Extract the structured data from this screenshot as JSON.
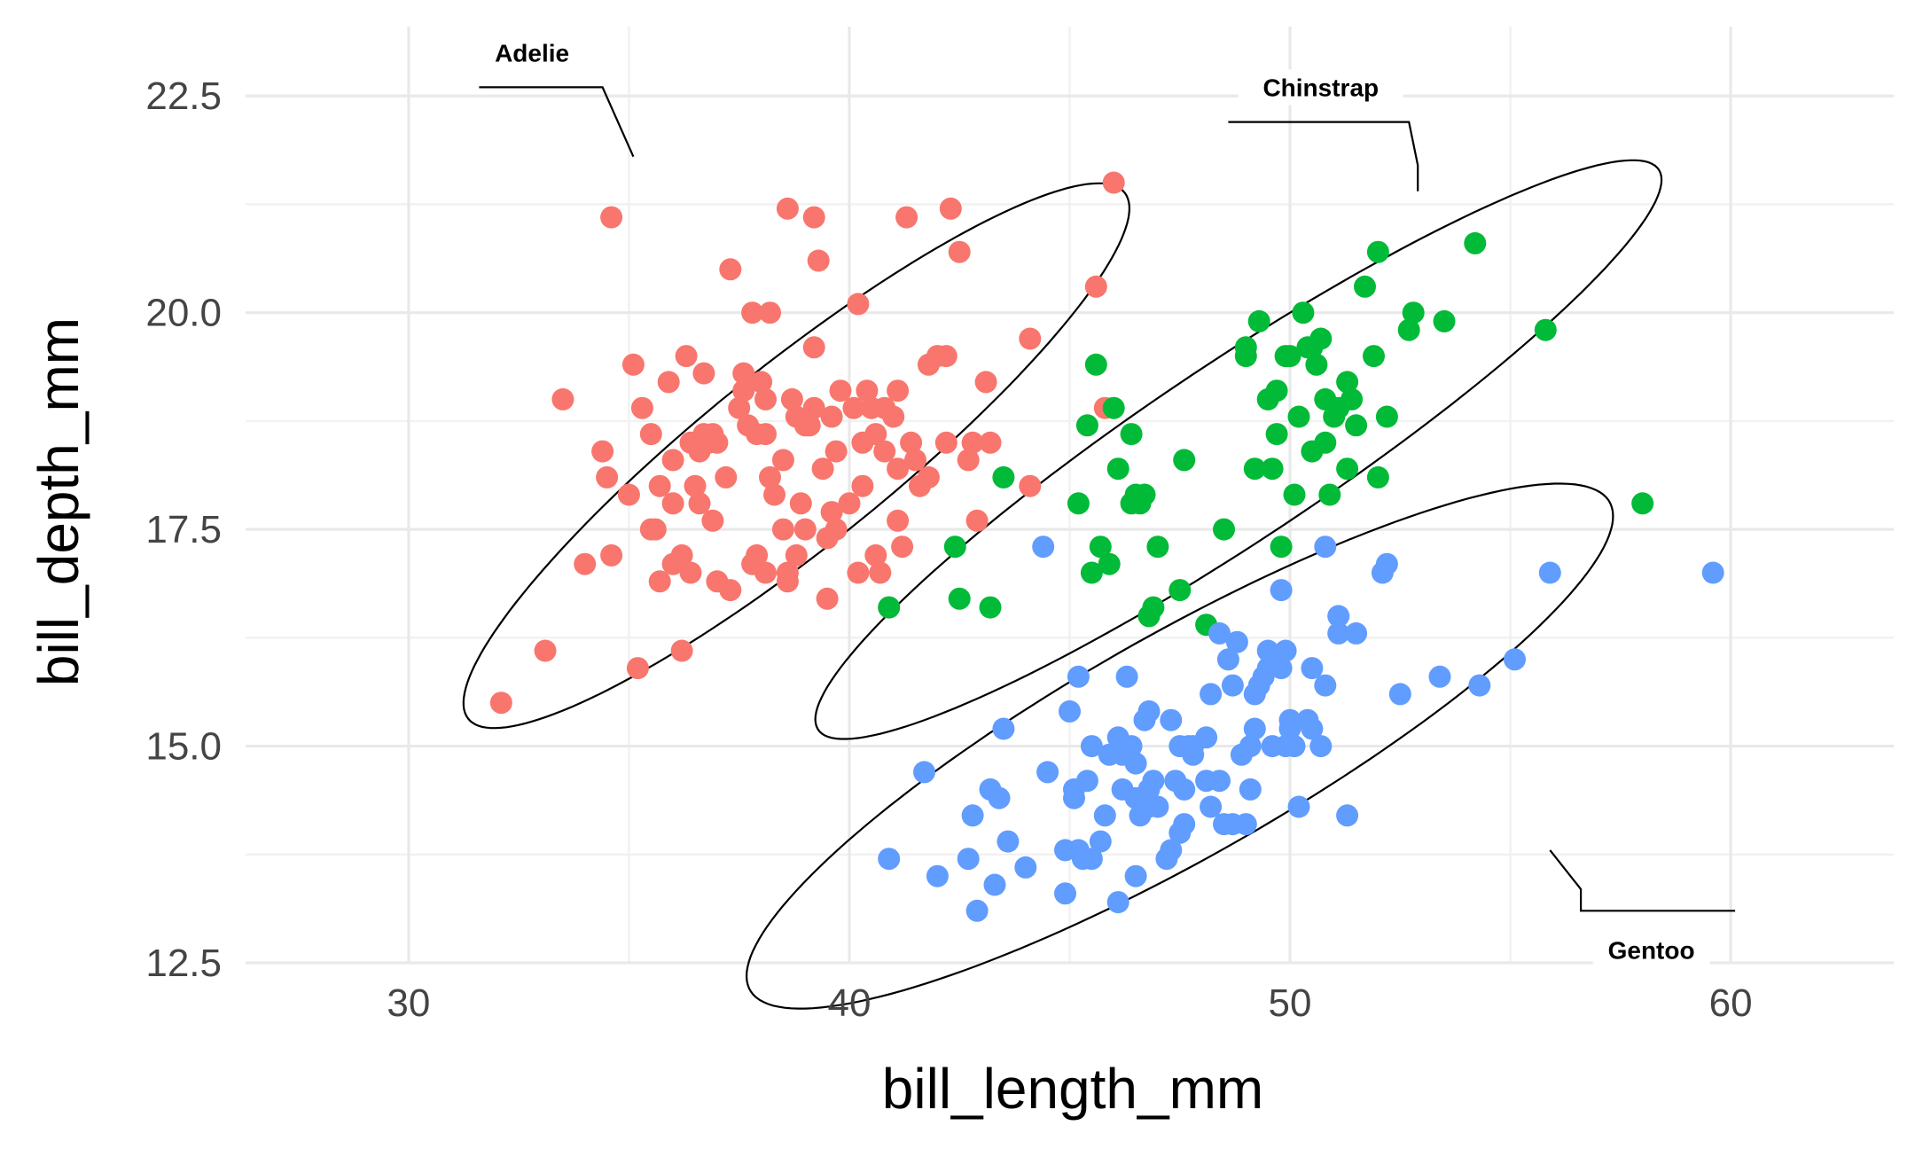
{
  "chart_data": {
    "type": "scatter",
    "xlabel": "bill_length_mm",
    "ylabel": "bill_depth_mm",
    "xlim": [
      26.3,
      63.7
    ],
    "ylim": [
      12.5,
      23.3
    ],
    "x_ticks": [
      "30",
      "40",
      "50",
      "60"
    ],
    "y_ticks": [
      "12.5",
      "15.0",
      "17.5",
      "20.0",
      "22.5"
    ],
    "grid": true,
    "legend": "none",
    "series": [
      {
        "name": "Adelie",
        "color": "#F8766D",
        "points": [
          [
            32.1,
            15.5
          ],
          [
            33.1,
            16.1
          ],
          [
            33.5,
            19.0
          ],
          [
            34.0,
            17.1
          ],
          [
            34.4,
            18.4
          ],
          [
            34.5,
            18.1
          ],
          [
            34.6,
            21.1
          ],
          [
            34.6,
            17.2
          ],
          [
            35.0,
            17.9
          ],
          [
            35.1,
            19.4
          ],
          [
            35.2,
            15.9
          ],
          [
            35.3,
            18.9
          ],
          [
            35.5,
            17.5
          ],
          [
            35.6,
            17.5
          ],
          [
            35.7,
            16.9
          ],
          [
            35.7,
            18.0
          ],
          [
            35.9,
            19.2
          ],
          [
            36.0,
            17.1
          ],
          [
            36.0,
            17.8
          ],
          [
            36.2,
            16.1
          ],
          [
            36.2,
            17.2
          ],
          [
            36.3,
            19.5
          ],
          [
            36.4,
            17.0
          ],
          [
            36.5,
            18.0
          ],
          [
            36.6,
            18.4
          ],
          [
            36.7,
            18.6
          ],
          [
            36.7,
            19.3
          ],
          [
            36.8,
            18.5
          ],
          [
            36.9,
            18.6
          ],
          [
            37.0,
            16.9
          ],
          [
            37.3,
            16.8
          ],
          [
            37.3,
            20.5
          ],
          [
            37.6,
            19.3
          ],
          [
            37.7,
            18.7
          ],
          [
            37.8,
            17.1
          ],
          [
            37.8,
            20.0
          ],
          [
            37.9,
            18.6
          ],
          [
            38.1,
            18.6
          ],
          [
            38.1,
            17.0
          ],
          [
            38.2,
            18.1
          ],
          [
            38.2,
            20.0
          ],
          [
            38.6,
            21.2
          ],
          [
            38.6,
            17.0
          ],
          [
            38.7,
            19.0
          ],
          [
            38.8,
            17.2
          ],
          [
            38.9,
            17.8
          ],
          [
            39.0,
            18.7
          ],
          [
            39.1,
            18.7
          ],
          [
            39.2,
            21.1
          ],
          [
            39.2,
            19.6
          ],
          [
            39.3,
            20.6
          ],
          [
            39.5,
            17.4
          ],
          [
            39.5,
            16.7
          ],
          [
            39.6,
            17.7
          ],
          [
            39.7,
            18.4
          ],
          [
            39.8,
            19.1
          ],
          [
            40.1,
            18.9
          ],
          [
            40.2,
            17.0
          ],
          [
            40.3,
            18.0
          ],
          [
            40.3,
            18.5
          ],
          [
            40.5,
            18.9
          ],
          [
            40.6,
            18.6
          ],
          [
            40.7,
            17.0
          ],
          [
            40.8,
            18.4
          ],
          [
            40.9,
            16.6
          ],
          [
            41.1,
            18.2
          ],
          [
            41.1,
            19.1
          ],
          [
            41.3,
            21.1
          ],
          [
            41.4,
            18.5
          ],
          [
            41.5,
            18.3
          ],
          [
            41.6,
            18.0
          ],
          [
            41.8,
            19.4
          ],
          [
            42.0,
            19.5
          ],
          [
            42.2,
            18.5
          ],
          [
            42.2,
            19.5
          ],
          [
            42.3,
            21.2
          ],
          [
            42.5,
            20.7
          ],
          [
            42.7,
            18.3
          ],
          [
            42.8,
            18.5
          ],
          [
            42.9,
            17.6
          ],
          [
            43.1,
            19.2
          ],
          [
            43.2,
            18.5
          ],
          [
            44.1,
            19.7
          ],
          [
            44.1,
            18.0
          ],
          [
            45.6,
            20.3
          ],
          [
            45.8,
            18.9
          ],
          [
            46.0,
            21.5
          ],
          [
            36.4,
            18.5
          ],
          [
            37.0,
            18.5
          ],
          [
            37.2,
            18.1
          ],
          [
            37.6,
            19.1
          ],
          [
            38.0,
            19.2
          ],
          [
            38.3,
            17.9
          ],
          [
            38.5,
            17.5
          ],
          [
            38.8,
            18.8
          ],
          [
            39.0,
            17.5
          ],
          [
            39.4,
            18.2
          ],
          [
            39.6,
            18.8
          ],
          [
            40.0,
            17.8
          ],
          [
            40.4,
            19.1
          ],
          [
            40.6,
            17.2
          ],
          [
            40.8,
            18.9
          ],
          [
            41.0,
            18.8
          ],
          [
            41.2,
            17.3
          ],
          [
            36.0,
            18.3
          ],
          [
            36.6,
            17.8
          ],
          [
            37.5,
            18.9
          ],
          [
            37.9,
            17.2
          ],
          [
            38.5,
            18.3
          ],
          [
            39.2,
            18.9
          ],
          [
            39.7,
            17.5
          ],
          [
            40.2,
            20.1
          ],
          [
            41.1,
            17.6
          ],
          [
            41.8,
            18.1
          ],
          [
            35.5,
            18.6
          ],
          [
            36.9,
            17.6
          ],
          [
            38.1,
            19.0
          ],
          [
            38.6,
            16.9
          ]
        ]
      },
      {
        "name": "Chinstrap",
        "color": "#00BA38",
        "points": [
          [
            40.9,
            16.6
          ],
          [
            42.4,
            17.3
          ],
          [
            42.5,
            16.7
          ],
          [
            43.2,
            16.6
          ],
          [
            43.5,
            18.1
          ],
          [
            45.2,
            17.8
          ],
          [
            45.4,
            18.7
          ],
          [
            45.5,
            17.0
          ],
          [
            45.6,
            19.4
          ],
          [
            45.7,
            17.3
          ],
          [
            45.9,
            17.1
          ],
          [
            46.0,
            18.9
          ],
          [
            46.1,
            18.2
          ],
          [
            46.4,
            18.6
          ],
          [
            46.4,
            17.8
          ],
          [
            46.5,
            17.9
          ],
          [
            46.6,
            17.8
          ],
          [
            46.7,
            17.9
          ],
          [
            46.8,
            16.5
          ],
          [
            46.9,
            16.6
          ],
          [
            47.0,
            17.3
          ],
          [
            47.5,
            16.8
          ],
          [
            47.6,
            18.3
          ],
          [
            48.1,
            16.4
          ],
          [
            48.5,
            17.5
          ],
          [
            49.0,
            19.5
          ],
          [
            49.0,
            19.6
          ],
          [
            49.2,
            18.2
          ],
          [
            49.3,
            19.9
          ],
          [
            49.5,
            19.0
          ],
          [
            49.6,
            18.2
          ],
          [
            49.7,
            18.6
          ],
          [
            49.8,
            17.3
          ],
          [
            49.9,
            19.5
          ],
          [
            50.0,
            19.5
          ],
          [
            50.1,
            17.9
          ],
          [
            50.2,
            18.8
          ],
          [
            50.3,
            20.0
          ],
          [
            50.4,
            19.6
          ],
          [
            50.5,
            18.4
          ],
          [
            50.6,
            19.4
          ],
          [
            50.7,
            19.7
          ],
          [
            50.8,
            19.0
          ],
          [
            50.8,
            18.5
          ],
          [
            50.9,
            17.9
          ],
          [
            51.0,
            18.8
          ],
          [
            51.3,
            19.2
          ],
          [
            51.3,
            18.2
          ],
          [
            51.4,
            19.0
          ],
          [
            51.5,
            18.7
          ],
          [
            51.7,
            20.3
          ],
          [
            51.9,
            19.5
          ],
          [
            52.0,
            18.1
          ],
          [
            52.0,
            20.7
          ],
          [
            52.2,
            18.8
          ],
          [
            52.7,
            19.8
          ],
          [
            52.8,
            20.0
          ],
          [
            53.5,
            19.9
          ],
          [
            54.2,
            20.8
          ],
          [
            55.8,
            19.8
          ],
          [
            58.0,
            17.8
          ],
          [
            50.5,
            19.6
          ],
          [
            51.1,
            18.9
          ],
          [
            49.7,
            19.1
          ]
        ]
      },
      {
        "name": "Gentoo",
        "color": "#619CFF",
        "points": [
          [
            40.9,
            13.7
          ],
          [
            41.7,
            14.7
          ],
          [
            42.0,
            13.5
          ],
          [
            42.7,
            13.7
          ],
          [
            42.8,
            14.2
          ],
          [
            42.9,
            13.1
          ],
          [
            43.2,
            14.5
          ],
          [
            43.3,
            13.4
          ],
          [
            43.4,
            14.4
          ],
          [
            43.5,
            15.2
          ],
          [
            43.6,
            13.9
          ],
          [
            44.0,
            13.6
          ],
          [
            44.4,
            17.3
          ],
          [
            44.5,
            14.7
          ],
          [
            44.9,
            13.8
          ],
          [
            44.9,
            13.3
          ],
          [
            45.0,
            15.4
          ],
          [
            45.1,
            14.5
          ],
          [
            45.2,
            13.8
          ],
          [
            45.2,
            15.8
          ],
          [
            45.3,
            13.7
          ],
          [
            45.4,
            14.6
          ],
          [
            45.5,
            13.7
          ],
          [
            45.5,
            15.0
          ],
          [
            45.7,
            13.9
          ],
          [
            45.8,
            14.2
          ],
          [
            46.1,
            13.2
          ],
          [
            46.1,
            15.1
          ],
          [
            46.2,
            14.9
          ],
          [
            46.2,
            14.5
          ],
          [
            46.3,
            15.8
          ],
          [
            46.4,
            15.0
          ],
          [
            46.5,
            14.4
          ],
          [
            46.5,
            13.5
          ],
          [
            46.6,
            14.2
          ],
          [
            46.7,
            15.3
          ],
          [
            46.8,
            14.3
          ],
          [
            46.8,
            15.4
          ],
          [
            46.9,
            14.6
          ],
          [
            47.0,
            14.3
          ],
          [
            47.2,
            13.7
          ],
          [
            47.3,
            15.3
          ],
          [
            47.4,
            14.6
          ],
          [
            47.5,
            14.0
          ],
          [
            47.5,
            15.0
          ],
          [
            47.6,
            14.5
          ],
          [
            47.7,
            15.0
          ],
          [
            47.8,
            15.0
          ],
          [
            48.1,
            15.1
          ],
          [
            48.2,
            14.3
          ],
          [
            48.2,
            15.6
          ],
          [
            48.4,
            14.6
          ],
          [
            48.4,
            16.3
          ],
          [
            48.5,
            14.1
          ],
          [
            48.6,
            16.0
          ],
          [
            48.7,
            14.1
          ],
          [
            48.7,
            15.7
          ],
          [
            48.8,
            16.2
          ],
          [
            49.0,
            14.1
          ],
          [
            49.1,
            14.5
          ],
          [
            49.1,
            15.0
          ],
          [
            49.2,
            15.2
          ],
          [
            49.3,
            15.7
          ],
          [
            49.4,
            15.8
          ],
          [
            49.5,
            16.1
          ],
          [
            49.6,
            15.0
          ],
          [
            49.6,
            16.0
          ],
          [
            49.8,
            15.9
          ],
          [
            49.8,
            16.8
          ],
          [
            49.9,
            16.1
          ],
          [
            50.0,
            15.2
          ],
          [
            50.0,
            15.3
          ],
          [
            50.1,
            15.0
          ],
          [
            50.2,
            14.3
          ],
          [
            50.4,
            15.3
          ],
          [
            50.5,
            15.9
          ],
          [
            50.7,
            15.0
          ],
          [
            50.8,
            15.7
          ],
          [
            50.8,
            17.3
          ],
          [
            51.1,
            16.3
          ],
          [
            51.1,
            16.5
          ],
          [
            51.3,
            14.2
          ],
          [
            51.5,
            16.3
          ],
          [
            52.1,
            17.0
          ],
          [
            52.2,
            17.1
          ],
          [
            52.5,
            15.6
          ],
          [
            53.4,
            15.8
          ],
          [
            54.3,
            15.7
          ],
          [
            55.1,
            16.0
          ],
          [
            55.9,
            17.0
          ],
          [
            59.6,
            17.0
          ],
          [
            46.5,
            14.8
          ],
          [
            47.3,
            13.8
          ],
          [
            47.6,
            14.1
          ],
          [
            47.8,
            14.9
          ],
          [
            48.1,
            14.6
          ],
          [
            48.9,
            14.9
          ],
          [
            49.2,
            15.6
          ],
          [
            49.5,
            15.9
          ],
          [
            49.9,
            15.0
          ],
          [
            50.5,
            15.2
          ],
          [
            45.1,
            14.4
          ],
          [
            45.9,
            14.9
          ],
          [
            46.8,
            14.5
          ]
        ]
      }
    ],
    "ellipses": [
      {
        "name": "Adelie",
        "cx": 38.8,
        "cy": 18.35,
        "rx": 8.09,
        "ry": 1.23,
        "angle_deg": 21.2
      },
      {
        "name": "Chinstrap",
        "cx": 48.83,
        "cy": 18.42,
        "rx": 10.1,
        "ry": 1.15,
        "angle_deg": 18.2
      },
      {
        "name": "Gentoo",
        "cx": 47.5,
        "cy": 15.0,
        "rx": 10.19,
        "ry": 1.41,
        "angle_deg": 15.4
      }
    ],
    "annotations": [
      {
        "text": "Adelie",
        "x": 32.8,
        "y": 23.0,
        "leader": [
          [
            31.6,
            22.6
          ],
          [
            34.4,
            22.6
          ],
          [
            35.1,
            21.8
          ]
        ],
        "anchor": "middle",
        "baseline_offset": 0.0
      },
      {
        "text": "Chinstrap",
        "x": 50.7,
        "y": 22.6,
        "leader": [
          [
            48.6,
            22.2
          ],
          [
            52.7,
            22.2
          ],
          [
            52.9,
            21.7
          ],
          [
            52.9,
            21.4
          ]
        ],
        "anchor": "middle",
        "baseline_offset": 0.0
      },
      {
        "text": "Gentoo",
        "x": 58.2,
        "y": 12.65,
        "leader": [
          [
            60.1,
            13.1
          ],
          [
            56.6,
            13.1
          ],
          [
            56.6,
            13.35
          ],
          [
            55.9,
            13.8
          ]
        ],
        "anchor": "middle",
        "baseline_offset": 0.0
      }
    ]
  }
}
